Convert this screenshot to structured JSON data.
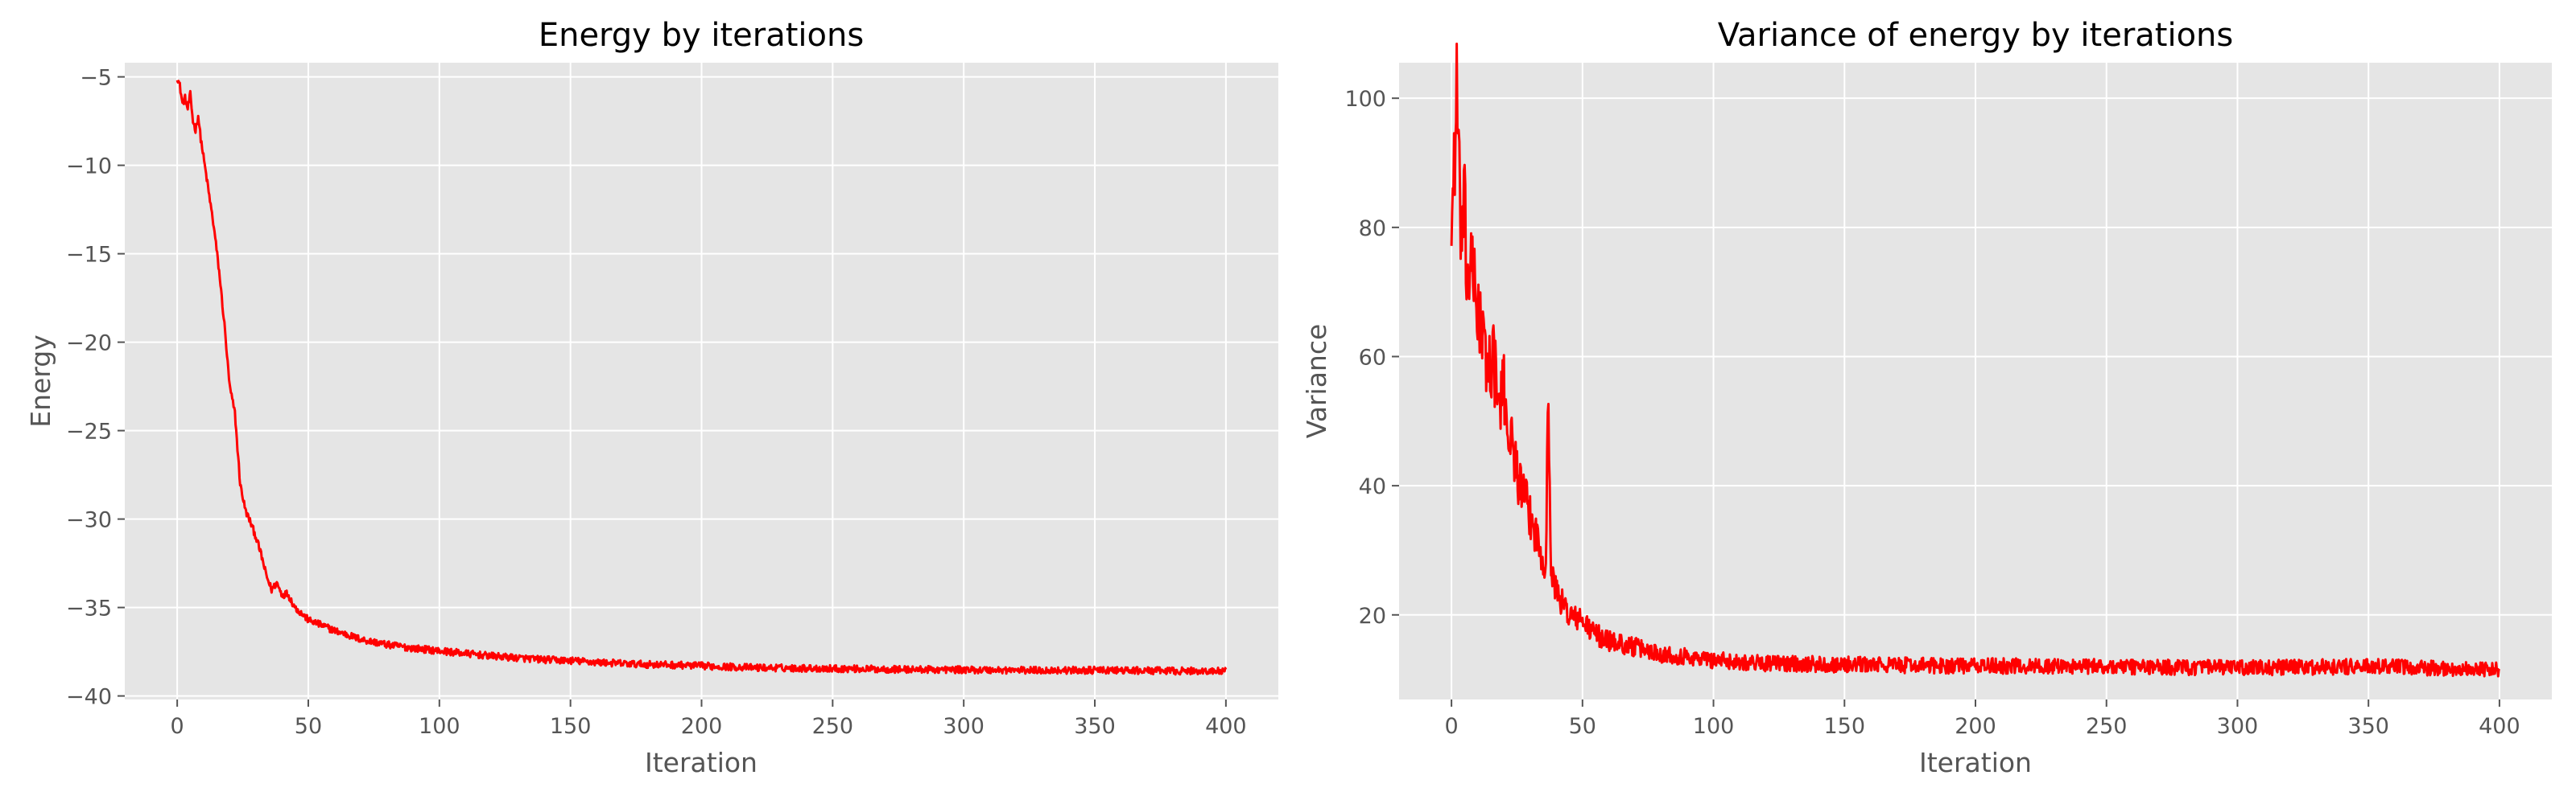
{
  "chart_data": [
    {
      "type": "line",
      "title": "Energy by iterations",
      "xlabel": "Iteration",
      "ylabel": "Energy",
      "xlim": [
        -20,
        420
      ],
      "ylim": [
        -40.2,
        -4.2
      ],
      "xticks": [
        0,
        50,
        100,
        150,
        200,
        250,
        300,
        350,
        400
      ],
      "xtick_labels": [
        "0",
        "50",
        "100",
        "150",
        "200",
        "250",
        "300",
        "350",
        "400"
      ],
      "yticks": [
        -40,
        -35,
        -30,
        -25,
        -20,
        -15,
        -10,
        -5
      ],
      "ytick_labels": [
        "−40",
        "−35",
        "−30",
        "−25",
        "−20",
        "−15",
        "−10",
        "−5"
      ],
      "grid": true,
      "background": "#e5e5e5",
      "grid_color": "#ffffff",
      "line_color": "#ff0000",
      "series": [
        {
          "x": [
            0,
            1,
            2,
            3,
            4,
            5,
            6,
            7,
            8,
            9,
            10,
            12,
            14,
            16,
            18,
            20,
            22,
            24,
            26,
            28,
            30,
            32,
            34,
            36,
            38,
            40,
            42,
            45,
            50,
            55,
            60,
            70,
            80,
            90,
            100,
            110,
            120,
            130,
            140,
            150,
            160,
            175,
            190,
            200,
            220,
            250,
            275,
            300,
            325,
            350,
            375,
            400
          ],
          "y": [
            -5.0,
            -5.5,
            -6.5,
            -6.2,
            -6.8,
            -6.0,
            -7.5,
            -8.0,
            -7.2,
            -8.5,
            -9.5,
            -11.5,
            -13.5,
            -16.0,
            -19.0,
            -22.5,
            -24.0,
            -28.0,
            -29.5,
            -30.2,
            -31.0,
            -32.0,
            -33.2,
            -34.0,
            -33.6,
            -34.3,
            -34.2,
            -35.0,
            -35.7,
            -36.0,
            -36.3,
            -36.8,
            -37.1,
            -37.3,
            -37.45,
            -37.6,
            -37.75,
            -37.85,
            -37.95,
            -38.0,
            -38.1,
            -38.2,
            -38.25,
            -38.3,
            -38.4,
            -38.45,
            -38.5,
            -38.52,
            -38.55,
            -38.55,
            -38.58,
            -38.6
          ],
          "noise": 0.2
        }
      ]
    },
    {
      "type": "line",
      "title": "Variance of energy by iterations",
      "xlabel": "Iteration",
      "ylabel": "Variance",
      "xlim": [
        -20,
        420
      ],
      "ylim": [
        6.9,
        105.5
      ],
      "xticks": [
        0,
        50,
        100,
        150,
        200,
        250,
        300,
        350,
        400
      ],
      "xtick_labels": [
        "0",
        "50",
        "100",
        "150",
        "200",
        "250",
        "300",
        "350",
        "400"
      ],
      "yticks": [
        20,
        40,
        60,
        80,
        100
      ],
      "ytick_labels": [
        "20",
        "40",
        "60",
        "80",
        "100"
      ],
      "grid": true,
      "background": "#e5e5e5",
      "grid_color": "#ffffff",
      "line_color": "#ff0000",
      "series": [
        {
          "x": [
            0,
            1,
            2,
            3,
            4,
            5,
            6,
            7,
            8,
            10,
            12,
            14,
            16,
            18,
            20,
            22,
            24,
            26,
            28,
            30,
            32,
            34,
            36,
            37,
            38,
            40,
            42,
            45,
            50,
            55,
            60,
            70,
            80,
            90,
            100,
            120,
            150,
            200,
            250,
            300,
            350,
            400
          ],
          "y": [
            80,
            90,
            101,
            85,
            78,
            82,
            70,
            75,
            72,
            68,
            62,
            58,
            60,
            52,
            55,
            48,
            45,
            40,
            38,
            35,
            33,
            30,
            28,
            55,
            26,
            24,
            22,
            20,
            19,
            17,
            16,
            15,
            14,
            13.5,
            13,
            12.5,
            12.3,
            12.1,
            12,
            11.8,
            12,
            11.5
          ],
          "noise": 1.2
        }
      ]
    }
  ]
}
